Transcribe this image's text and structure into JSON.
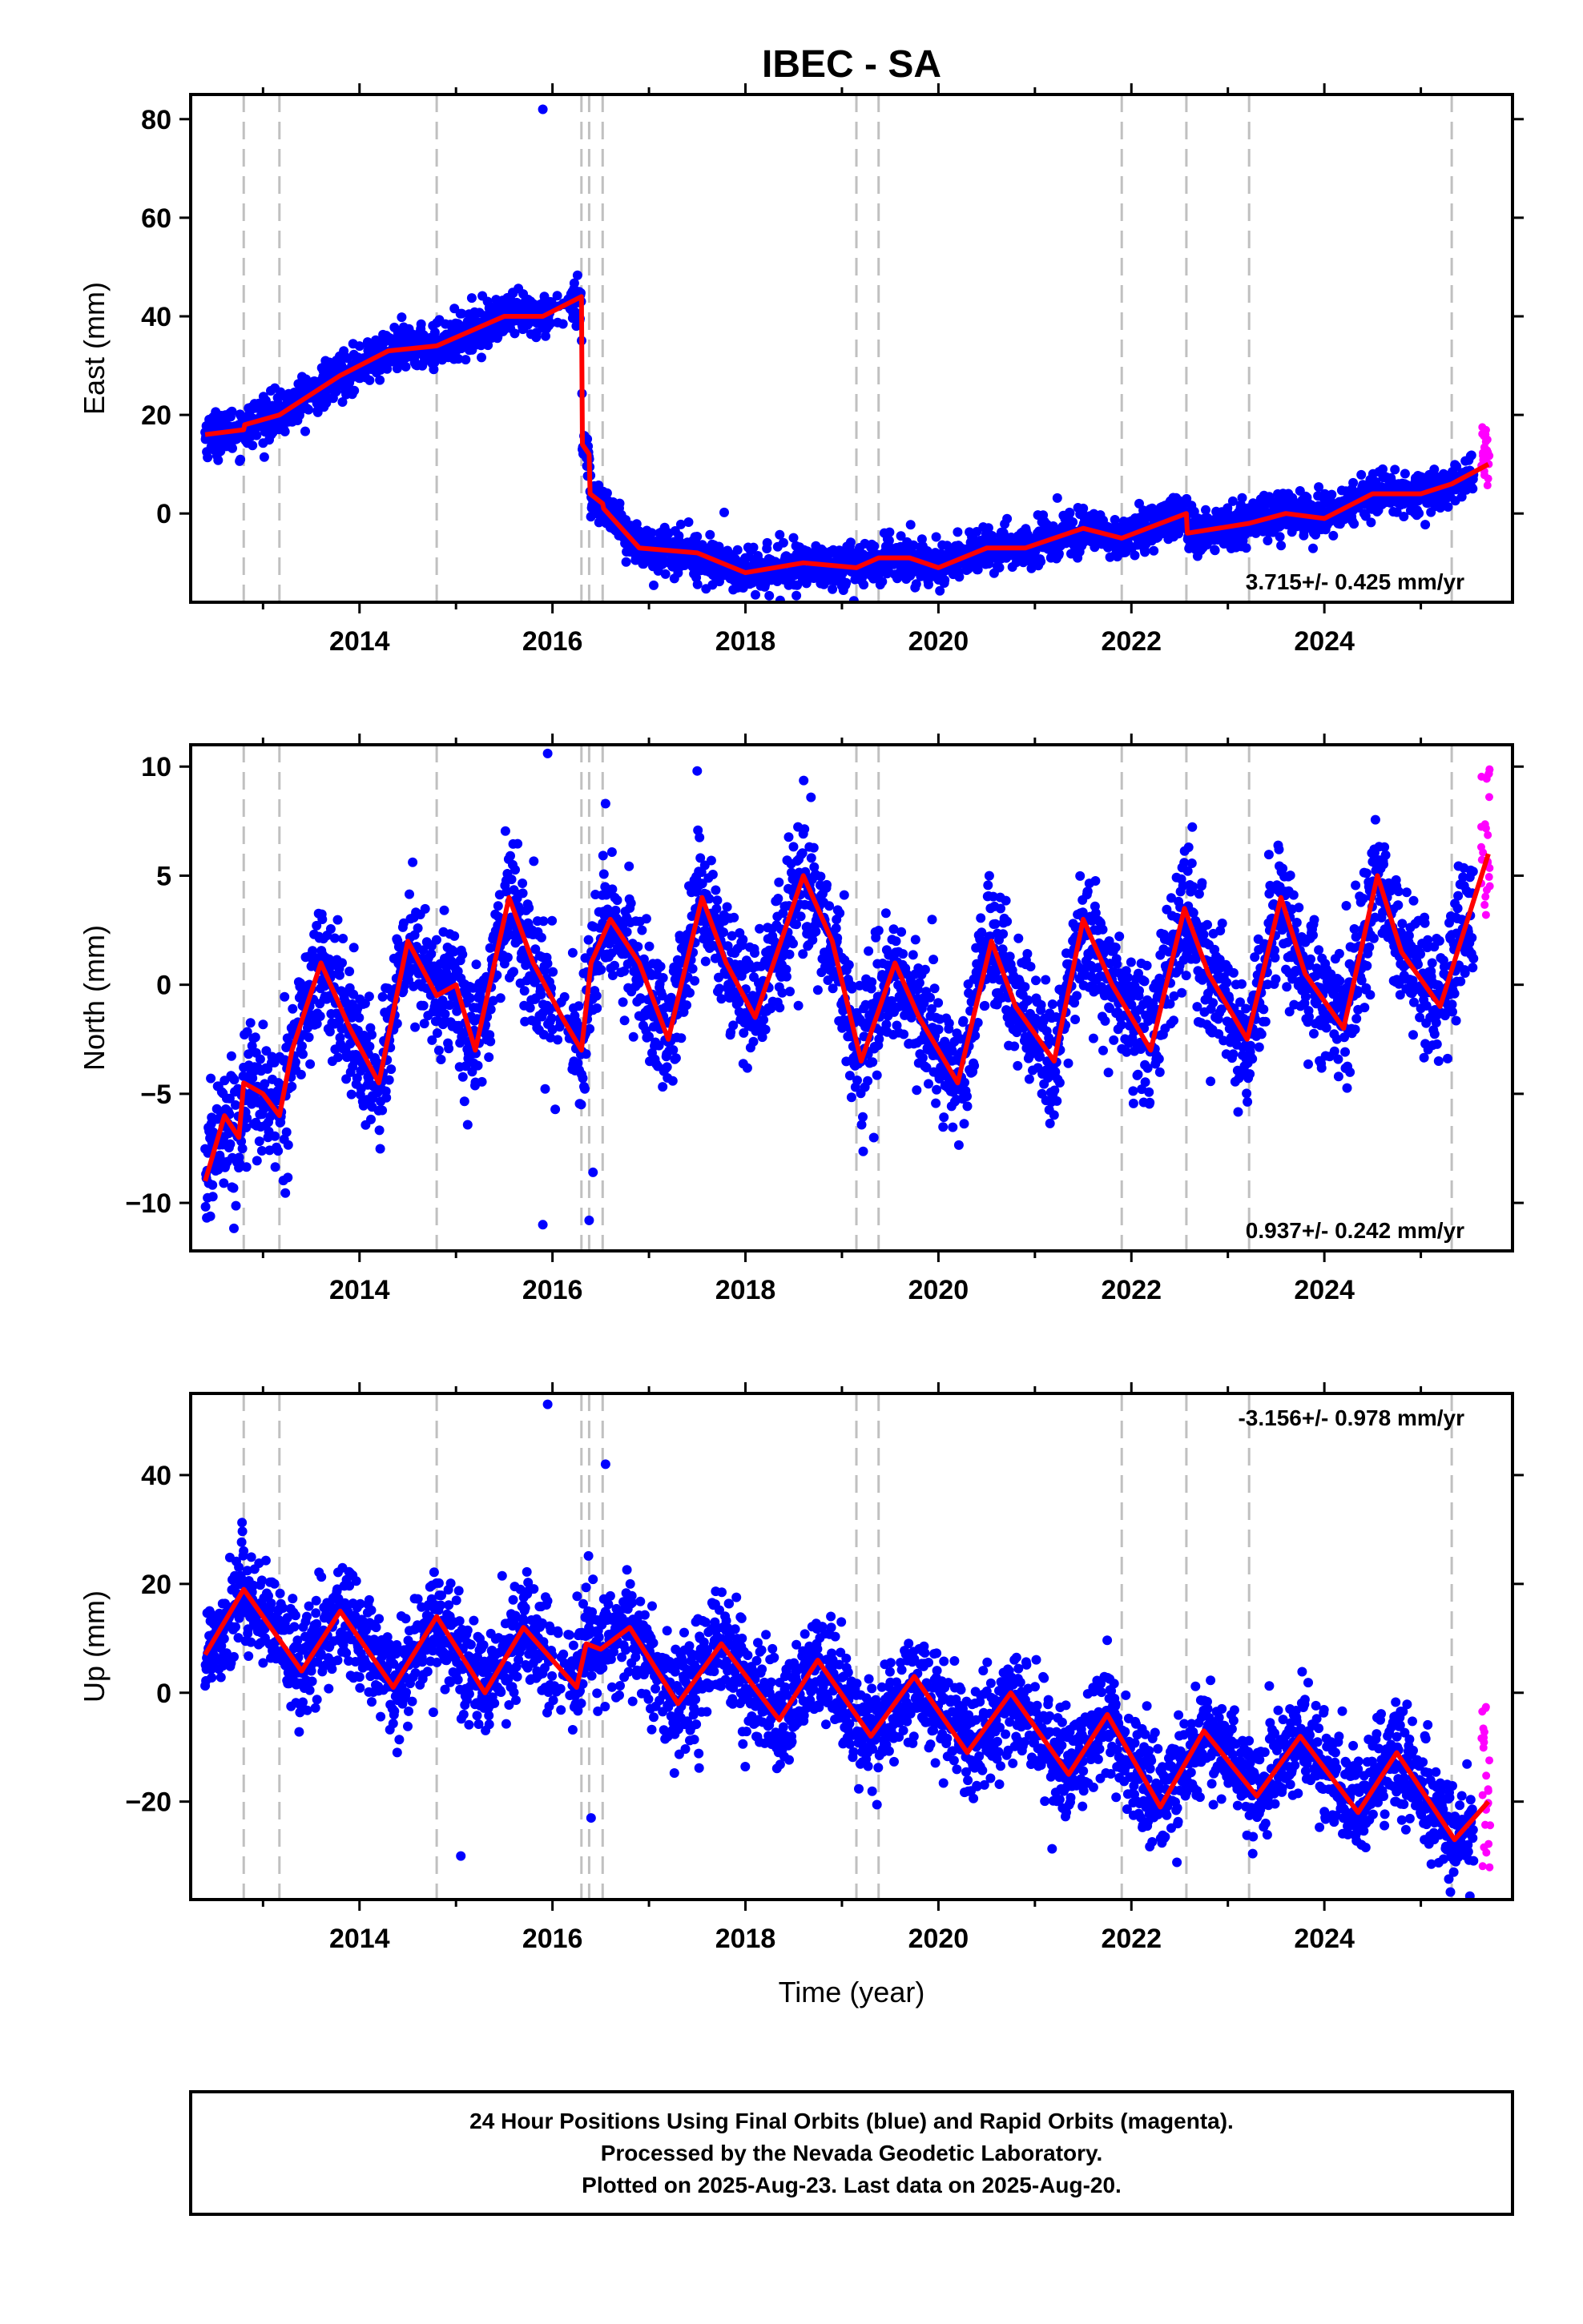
{
  "title": "IBEC - SA",
  "colors": {
    "final": "#0000ff",
    "rapid": "#ff00ff",
    "model": "#ff0000",
    "steps": "#c0c0c0"
  },
  "chart_data": [
    {
      "type": "scatter",
      "name": "east",
      "ylabel": "East (mm)",
      "xlabel": "",
      "xlim": [
        2012.25,
        2025.95
      ],
      "ylim": [
        -18,
        85
      ],
      "xticks": [
        2014,
        2016,
        2018,
        2020,
        2022,
        2024
      ],
      "xtick_labels": [
        "2014",
        "2016",
        "2018",
        "2020",
        "2022",
        "2024"
      ],
      "yticks": [
        0,
        20,
        40,
        60,
        80
      ],
      "ytick_labels": [
        "0",
        "20",
        "40",
        "60",
        "80"
      ],
      "rate": "3.715+/- 0.425 mm/yr",
      "rate_position": "bottom-right",
      "step_lines": [
        2012.8,
        2013.17,
        2014.8,
        2016.3,
        2016.38,
        2016.52,
        2019.15,
        2019.38,
        2021.9,
        2022.57,
        2023.22,
        2025.32
      ],
      "model": {
        "x": [
          2012.4,
          2012.8,
          2012.81,
          2013.17,
          2013.8,
          2014.3,
          2014.8,
          2015.5,
          2015.9,
          2016.3,
          2016.31,
          2016.38,
          2016.39,
          2016.52,
          2016.53,
          2016.9,
          2017.5,
          2018.0,
          2018.6,
          2019.15,
          2019.38,
          2019.7,
          2020.0,
          2020.5,
          2020.9,
          2021.5,
          2021.9,
          2022.57,
          2022.58,
          2023.22,
          2023.6,
          2024.0,
          2024.5,
          2025.0,
          2025.32,
          2025.7
        ],
        "y": [
          16,
          17,
          18,
          20,
          28,
          33,
          34,
          40,
          40,
          44,
          14,
          12,
          4,
          2,
          1,
          -7,
          -8,
          -12,
          -10,
          -11,
          -9,
          -9,
          -11,
          -7,
          -7,
          -3,
          -5,
          0,
          -4,
          -2,
          0,
          -1,
          4,
          4,
          6,
          10
        ]
      },
      "scatter_spread": 2.2,
      "outliers": [
        [
          2015.9,
          82
        ]
      ],
      "rapid": {
        "x": [
          2025.62,
          2025.72
        ],
        "y": [
          4,
          18
        ]
      }
    },
    {
      "type": "scatter",
      "name": "north",
      "ylabel": "North (mm)",
      "xlabel": "",
      "xlim": [
        2012.25,
        2025.95
      ],
      "ylim": [
        -12.2,
        11
      ],
      "xticks": [
        2014,
        2016,
        2018,
        2020,
        2022,
        2024
      ],
      "xtick_labels": [
        "2014",
        "2016",
        "2018",
        "2020",
        "2022",
        "2024"
      ],
      "yticks": [
        -10,
        -5,
        0,
        5,
        10
      ],
      "ytick_labels": [
        "−10",
        "−5",
        "0",
        "5",
        "10"
      ],
      "rate": "0.937+/- 0.242 mm/yr",
      "rate_position": "bottom-right",
      "step_lines": [
        2012.8,
        2013.17,
        2014.8,
        2016.3,
        2016.38,
        2016.52,
        2019.15,
        2019.38,
        2021.9,
        2022.57,
        2023.22,
        2025.32
      ],
      "model": {
        "x": [
          2012.4,
          2012.6,
          2012.75,
          2012.8,
          2013.0,
          2013.17,
          2013.3,
          2013.6,
          2013.9,
          2014.2,
          2014.5,
          2014.8,
          2015.0,
          2015.2,
          2015.55,
          2015.8,
          2016.1,
          2016.3,
          2016.4,
          2016.6,
          2016.9,
          2017.2,
          2017.55,
          2017.8,
          2018.1,
          2018.6,
          2018.9,
          2019.2,
          2019.55,
          2019.8,
          2020.2,
          2020.55,
          2020.8,
          2021.2,
          2021.5,
          2021.8,
          2022.2,
          2022.55,
          2022.8,
          2023.2,
          2023.55,
          2023.8,
          2024.2,
          2024.55,
          2024.8,
          2025.2,
          2025.7
        ],
        "y": [
          -9,
          -6,
          -7,
          -4.5,
          -5,
          -6,
          -3,
          1,
          -2,
          -4.5,
          2,
          -0.5,
          0,
          -3,
          4,
          1,
          -1.5,
          -3,
          1,
          3,
          1,
          -2.5,
          4,
          1,
          -1.5,
          5,
          2,
          -3.5,
          1,
          -1.5,
          -4.5,
          2,
          -1,
          -3.5,
          3,
          0,
          -3,
          3.5,
          0.5,
          -2.5,
          4,
          0.5,
          -2,
          5,
          1.5,
          -1,
          6
        ]
      },
      "scatter_spread": 1.5,
      "outliers": [
        [
          2015.95,
          10.6
        ],
        [
          2015.9,
          -11
        ],
        [
          2016.38,
          -10.8
        ],
        [
          2016.42,
          -8.6
        ],
        [
          2017.5,
          9.8
        ],
        [
          2016.55,
          8.3
        ]
      ],
      "rapid": {
        "x": [
          2025.62,
          2025.72
        ],
        "y": [
          3.2,
          10.2
        ]
      }
    },
    {
      "type": "scatter",
      "name": "up",
      "ylabel": "Up (mm)",
      "xlabel": "Time (year)",
      "xlim": [
        2012.25,
        2025.95
      ],
      "ylim": [
        -38,
        55
      ],
      "xticks": [
        2014,
        2016,
        2018,
        2020,
        2022,
        2024
      ],
      "xtick_labels": [
        "2014",
        "2016",
        "2018",
        "2020",
        "2022",
        "2024"
      ],
      "yticks": [
        -20,
        0,
        20,
        40
      ],
      "ytick_labels": [
        "−20",
        "0",
        "20",
        "40"
      ],
      "rate": "-3.156+/- 0.978 mm/yr",
      "rate_position": "top-right",
      "step_lines": [
        2012.8,
        2013.17,
        2014.8,
        2016.3,
        2016.38,
        2016.52,
        2019.15,
        2019.38,
        2021.9,
        2022.57,
        2023.22,
        2025.32
      ],
      "model": {
        "x": [
          2012.4,
          2012.8,
          2013.4,
          2013.8,
          2014.35,
          2014.8,
          2015.3,
          2015.7,
          2016.25,
          2016.35,
          2016.5,
          2016.8,
          2017.3,
          2017.75,
          2018.35,
          2018.75,
          2019.3,
          2019.75,
          2020.3,
          2020.75,
          2021.35,
          2021.75,
          2022.3,
          2022.75,
          2023.3,
          2023.75,
          2024.35,
          2024.75,
          2025.35,
          2025.7
        ],
        "y": [
          7,
          19,
          4,
          15,
          1,
          14,
          0,
          12,
          1,
          9,
          8,
          12,
          -2,
          9,
          -5,
          6,
          -8,
          3,
          -11,
          0,
          -15,
          -4,
          -21,
          -7,
          -19,
          -8,
          -22,
          -11,
          -27,
          -20
        ]
      },
      "scatter_spread": 5,
      "outliers": [
        [
          2015.95,
          53
        ],
        [
          2016.55,
          42
        ],
        [
          2016.4,
          -23
        ],
        [
          2015.05,
          -30
        ]
      ],
      "rapid": {
        "x": [
          2025.62,
          2025.72
        ],
        "y": [
          -34,
          -1
        ]
      }
    }
  ],
  "footer": {
    "line1": "24 Hour Positions Using Final Orbits (blue) and Rapid Orbits (magenta).",
    "line2": "Processed by the Nevada Geodetic Laboratory.",
    "line3": "Plotted on 2025-Aug-23. Last data on 2025-Aug-20."
  }
}
